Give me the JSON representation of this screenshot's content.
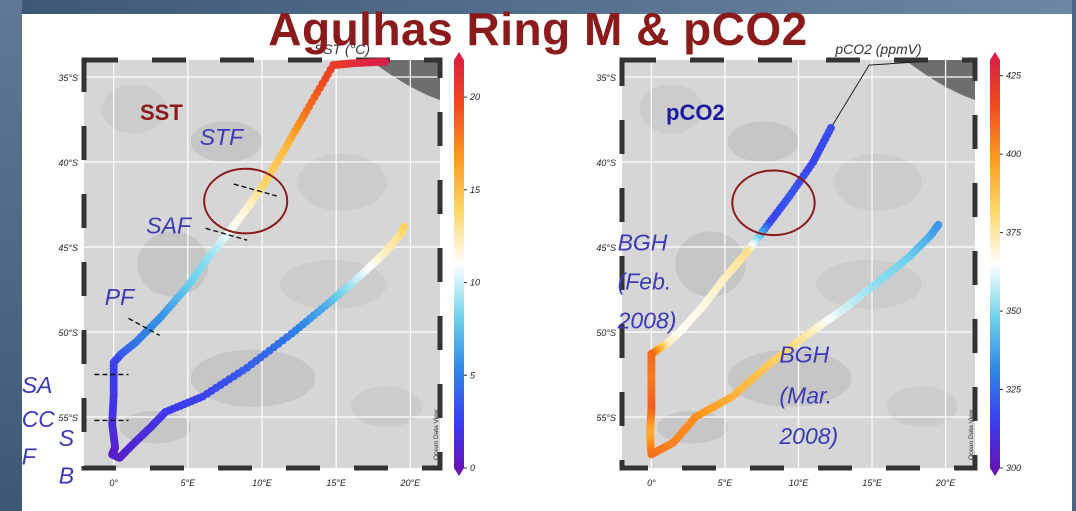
{
  "slide": {
    "title": "Agulhas Ring M & pCO2"
  },
  "colormap": [
    "#6a0dad",
    "#3c3cf0",
    "#2f86e6",
    "#6fd4ec",
    "#ffffff",
    "#ffd766",
    "#ff9a1e",
    "#f04a1e",
    "#d81c4a"
  ],
  "chart_data": [
    {
      "type": "scatter",
      "title": "SST (°C)",
      "panel_label": "SST",
      "xlabel": "",
      "ylabel": "",
      "xlim": [
        -2,
        22
      ],
      "ylim": [
        -58,
        -34
      ],
      "x_ticks": [
        {
          "v": 0,
          "t": "0°"
        },
        {
          "v": 5,
          "t": "5°E"
        },
        {
          "v": 10,
          "t": "10°E"
        },
        {
          "v": 15,
          "t": "15°E"
        },
        {
          "v": 20,
          "t": "20°E"
        }
      ],
      "y_ticks": [
        {
          "v": -35,
          "t": "35°S"
        },
        {
          "v": -40,
          "t": "40°S"
        },
        {
          "v": -45,
          "t": "45°S"
        },
        {
          "v": -50,
          "t": "50°S"
        },
        {
          "v": -55,
          "t": "55°S"
        }
      ],
      "colorbar": {
        "min": 0,
        "max": 22,
        "ticks": [
          0,
          5,
          10,
          15,
          20
        ]
      },
      "side_text": "Ocean Data View",
      "series": [
        {
          "points": [
            [
              18.3,
              -34.1,
              22
            ],
            [
              16,
              -34.2,
              21
            ],
            [
              14.8,
              -34.3,
              20
            ],
            [
              13,
              -37,
              18
            ],
            [
              11.5,
              -39.3,
              15
            ],
            [
              10.2,
              -41.2,
              14
            ],
            [
              9.1,
              -42.6,
              12
            ],
            [
              7.8,
              -44.1,
              11
            ],
            [
              6.4,
              -45.6,
              9
            ],
            [
              5,
              -47.3,
              8
            ],
            [
              3.2,
              -49.1,
              6
            ],
            [
              1.5,
              -50.6,
              5
            ],
            [
              0.5,
              -51.3,
              4
            ],
            [
              0,
              -51.8,
              3
            ],
            [
              0,
              -53.7,
              2.5
            ],
            [
              -0.1,
              -55.4,
              2
            ],
            [
              0.1,
              -56.8,
              1.5
            ],
            [
              -0.1,
              -57.2,
              1
            ],
            [
              0.4,
              -57.4,
              1.2
            ],
            [
              1.3,
              -56.6,
              1.5
            ],
            [
              2.5,
              -55.6,
              2
            ],
            [
              3.5,
              -54.7,
              2.5
            ],
            [
              6,
              -53.8,
              3
            ],
            [
              9,
              -52.1,
              4
            ],
            [
              12,
              -50.1,
              5
            ],
            [
              14.5,
              -48.3,
              7
            ],
            [
              16.5,
              -46.8,
              10
            ],
            [
              18.2,
              -45.4,
              12
            ],
            [
              19.3,
              -44.3,
              13
            ],
            [
              19.6,
              -43.8,
              14
            ]
          ]
        }
      ],
      "annotations": [
        {
          "text": "STF",
          "x": 5.8,
          "y": -39
        },
        {
          "text": "SAF",
          "x": 2.2,
          "y": -44.2
        },
        {
          "text": "PF",
          "x": -0.6,
          "y": -48.4
        },
        {
          "text": "SA",
          "x": -6.2,
          "y": -53.6
        },
        {
          "text": "CC",
          "x": -6.2,
          "y": -55.6
        },
        {
          "text": "S",
          "x": -3.7,
          "y": -56.7
        },
        {
          "text": "F",
          "x": -6.2,
          "y": -57.8
        },
        {
          "text": "B",
          "x": -3.7,
          "y": -58.9
        }
      ],
      "fronts": [
        [
          [
            8.1,
            -41.3
          ],
          [
            11,
            -42
          ]
        ],
        [
          [
            6.2,
            -43.9
          ],
          [
            9,
            -44.6
          ]
        ],
        [
          [
            1,
            -49.2
          ],
          [
            3.1,
            -50.2
          ]
        ],
        [
          [
            -1.3,
            -52.5
          ],
          [
            1,
            -52.5
          ]
        ],
        [
          [
            -1.3,
            -55.2
          ],
          [
            1,
            -55.2
          ]
        ]
      ],
      "circle": {
        "x": 8.9,
        "y": -42.3,
        "rx": 2.8,
        "ry": 1.9
      }
    },
    {
      "type": "scatter",
      "title": "pCO2 (ppmV)",
      "panel_label": "pCO2",
      "xlabel": "",
      "ylabel": "",
      "xlim": [
        -2,
        22
      ],
      "ylim": [
        -58,
        -34
      ],
      "x_ticks": [
        {
          "v": 0,
          "t": "0°"
        },
        {
          "v": 5,
          "t": "5°E"
        },
        {
          "v": 10,
          "t": "10°E"
        },
        {
          "v": 15,
          "t": "15°E"
        },
        {
          "v": 20,
          "t": "20°E"
        }
      ],
      "y_ticks": [
        {
          "v": -35,
          "t": "35°S"
        },
        {
          "v": -40,
          "t": "40°S"
        },
        {
          "v": -45,
          "t": "45°S"
        },
        {
          "v": -50,
          "t": "50°S"
        },
        {
          "v": -55,
          "t": "55°S"
        }
      ],
      "colorbar": {
        "min": 300,
        "max": 430,
        "ticks": [
          300,
          325,
          350,
          375,
          400,
          425
        ]
      },
      "side_text": "Ocean Data View",
      "track_line": [
        [
          18.3,
          -34.1
        ],
        [
          14.8,
          -34.3
        ],
        [
          12.2,
          -38
        ]
      ],
      "track_line_south": [
        [
          0,
          -57.4
        ],
        [
          1.5,
          -56.5
        ]
      ],
      "series": [
        {
          "points": [
            [
              12.2,
              -38,
              320
            ],
            [
              11,
              -40,
              318
            ],
            [
              9.4,
              -42,
              322
            ],
            [
              8,
              -43.6,
              318
            ],
            [
              6.5,
              -45.3,
              378
            ],
            [
              5,
              -46.8,
              372
            ],
            [
              3.5,
              -48.5,
              368
            ],
            [
              1.8,
              -50.1,
              366
            ],
            [
              1,
              -50.7,
              372
            ],
            [
              0,
              -51.3,
              408
            ],
            [
              0,
              -52.8,
              404
            ],
            [
              0,
              -54.5,
              410
            ],
            [
              -0.1,
              -56,
              392
            ],
            [
              0,
              -57.2,
              406
            ],
            [
              1.5,
              -56.5,
              402
            ],
            [
              3,
              -55,
              400
            ],
            [
              5.5,
              -53.8,
              392
            ],
            [
              8,
              -51.9,
              385
            ],
            [
              10.5,
              -50.2,
              375
            ],
            [
              13,
              -48.7,
              360
            ],
            [
              15.5,
              -47,
              352
            ],
            [
              17.5,
              -45.6,
              348
            ],
            [
              19,
              -44.3,
              340
            ],
            [
              19.5,
              -43.7,
              336
            ]
          ]
        }
      ],
      "annotations": [
        {
          "text": "BGH",
          "x": -2.3,
          "y": -45.2
        },
        {
          "text": "(Feb.",
          "x": -2.3,
          "y": -47.5
        },
        {
          "text": "2008)",
          "x": -2.3,
          "y": -49.8
        },
        {
          "text": "BGH",
          "x": 8.7,
          "y": -51.8
        },
        {
          "text": "(Mar.",
          "x": 8.7,
          "y": -54.2
        },
        {
          "text": "2008)",
          "x": 8.7,
          "y": -56.6
        }
      ],
      "fronts": [],
      "circle": {
        "x": 8.3,
        "y": -42.4,
        "rx": 2.8,
        "ry": 1.9
      }
    }
  ]
}
